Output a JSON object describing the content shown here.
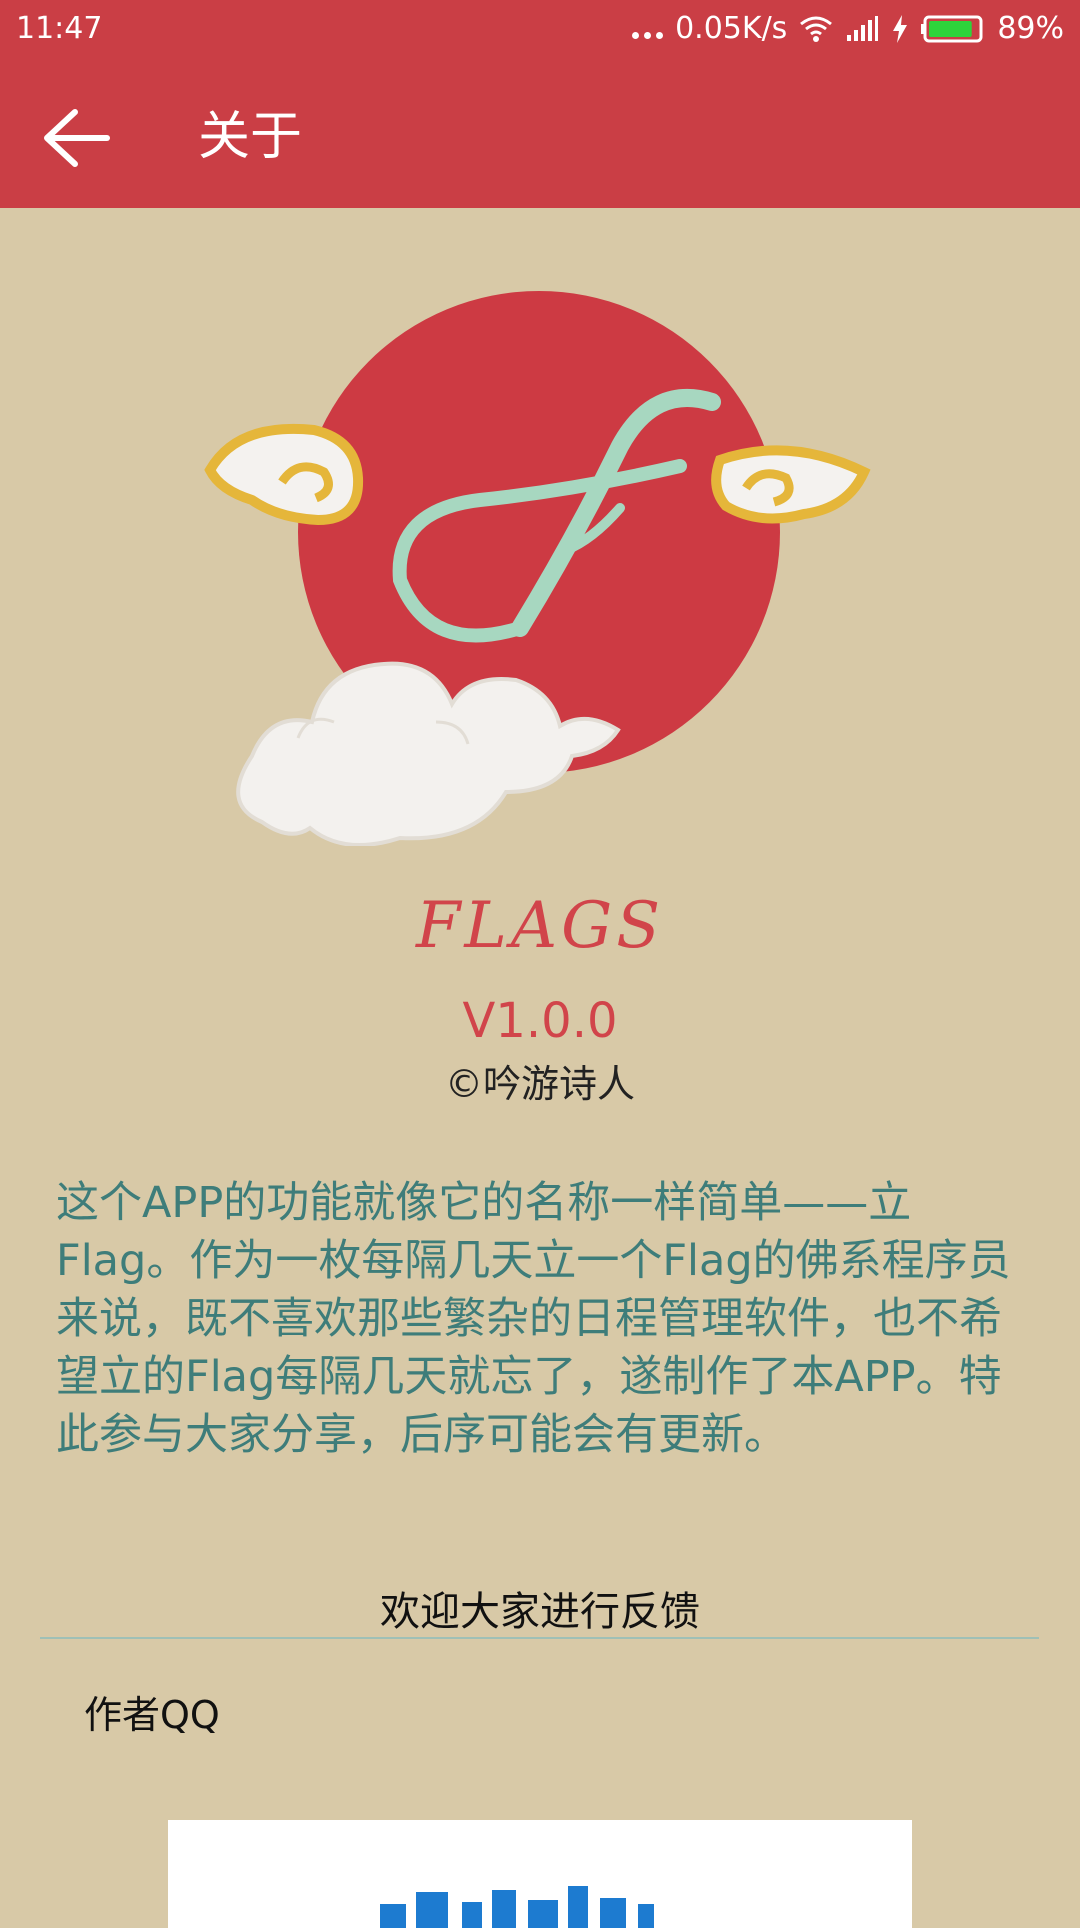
{
  "status_bar": {
    "time": "11:47",
    "network_speed": "0.05K/s",
    "battery": "89%",
    "battery_level": 0.89,
    "icons": [
      "more-dots-icon",
      "wifi-icon",
      "signal-icon",
      "charging-icon",
      "battery-icon"
    ]
  },
  "toolbar": {
    "title": "关于",
    "back_icon": "arrow-left-icon"
  },
  "about": {
    "app_name": "FLAGS",
    "version": "V1.0.0",
    "copyright": "©吟游诗人",
    "description": "这个APP的功能就像它的名称一样简单——立Flag。作为一枚每隔几天立一个Flag的佛系程序员来说，既不喜欢那些繁杂的日程管理软件，也不希望立的Flag每隔几天就忘了，遂制作了本APP。特此参与大家分享，后序可能会有更新。"
  },
  "feedback": {
    "heading": "欢迎大家进行反馈",
    "qq_label": "作者QQ"
  },
  "colors": {
    "appbar": "#ca3e45",
    "background": "#d8c9a7",
    "accent_red": "#d1444a",
    "teal_text": "#3e7d7a",
    "logo_letter": "#a7d7c0"
  }
}
